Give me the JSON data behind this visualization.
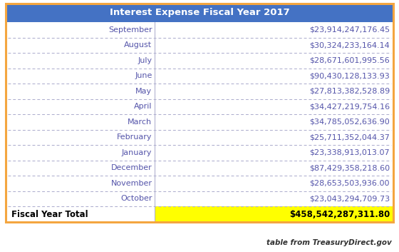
{
  "title": "Interest Expense Fiscal Year 2017",
  "title_bg": "#4472c4",
  "title_color": "#ffffff",
  "rows": [
    [
      "September",
      "$23,914,247,176.45"
    ],
    [
      "August",
      "$30,324,233,164.14"
    ],
    [
      "July",
      "$28,671,601,995.56"
    ],
    [
      "June",
      "$90,430,128,133.93"
    ],
    [
      "May",
      "$27,813,382,528.89"
    ],
    [
      "April",
      "$34,427,219,754.16"
    ],
    [
      "March",
      "$34,785,052,636.90"
    ],
    [
      "February",
      "$25,711,352,044.37"
    ],
    [
      "January",
      "$23,338,913,013.07"
    ],
    [
      "December",
      "$87,429,358,218.60"
    ],
    [
      "November",
      "$28,653,503,936.00"
    ],
    [
      "October",
      "$23,043,294,709.73"
    ]
  ],
  "total_label": "Fiscal Year Total",
  "total_value": "$458,542,287,311.80",
  "total_bg": "#ffff00",
  "footer": "table from TreasuryDirect.gov",
  "outer_border_color": "#f4a640",
  "divider_color": "#aaaacc",
  "month_color": "#5555aa",
  "value_color": "#5555aa",
  "total_label_color": "#000000",
  "total_value_color": "#000000",
  "col_split": 0.385,
  "title_fontsize": 9.5,
  "row_fontsize": 8.0,
  "total_fontsize": 8.5,
  "footer_fontsize": 7.5
}
